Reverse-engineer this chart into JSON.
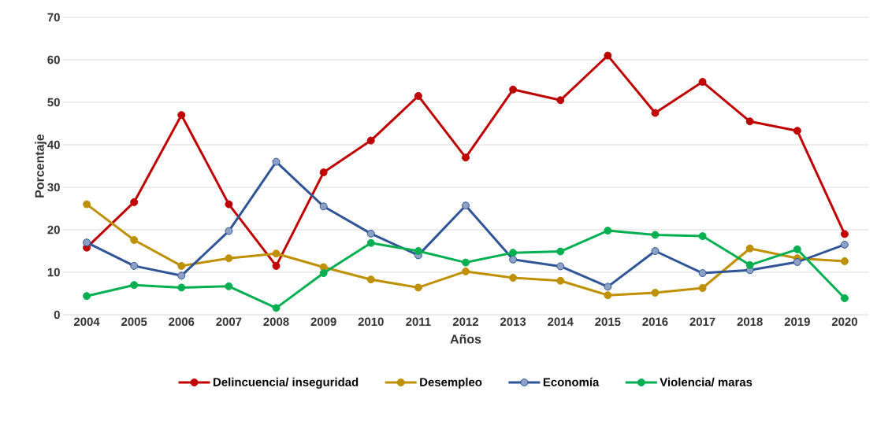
{
  "chart_data": {
    "type": "line",
    "xlabel": "Años",
    "ylabel": "Porcentaje",
    "categories": [
      "2004",
      "2005",
      "2006",
      "2007",
      "2008",
      "2009",
      "2010",
      "2011",
      "2012",
      "2013",
      "2014",
      "2015",
      "2016",
      "2017",
      "2018",
      "2019",
      "2020"
    ],
    "series": [
      {
        "name": "Delincuencia/ inseguridad",
        "color": "#c00000",
        "values": [
          15.8,
          26.5,
          47,
          26,
          11.5,
          33.5,
          41,
          51.5,
          37,
          53,
          50.5,
          61,
          47.5,
          54.8,
          45.5,
          43.3,
          19
        ]
      },
      {
        "name": "Desempleo",
        "color": "#bf9000",
        "values": [
          26,
          17.6,
          11.5,
          13.3,
          14.4,
          11.2,
          8.3,
          6.4,
          10.2,
          8.7,
          8,
          4.6,
          5.2,
          6.3,
          15.6,
          13.3,
          12.6
        ]
      },
      {
        "name": "Economía",
        "color": "#2f5597",
        "values": [
          17,
          11.5,
          9.2,
          19.7,
          36,
          25.5,
          19.1,
          14,
          25.7,
          13,
          11.4,
          6.6,
          15,
          9.8,
          10.5,
          12.4,
          16.5
        ]
      },
      {
        "name": "Violencia/ maras",
        "color": "#00b050",
        "values": [
          4.4,
          7,
          6.4,
          6.7,
          1.6,
          9.8,
          16.9,
          15,
          12.3,
          14.6,
          14.9,
          19.8,
          18.8,
          18.5,
          11.7,
          15.4,
          3.9
        ]
      }
    ],
    "ylim": [
      0,
      70
    ],
    "yticks": [
      0,
      10,
      20,
      30,
      40,
      50,
      60,
      70
    ],
    "grid": "y",
    "legend": "bottom",
    "marker": "circle",
    "line_style": "solid"
  }
}
